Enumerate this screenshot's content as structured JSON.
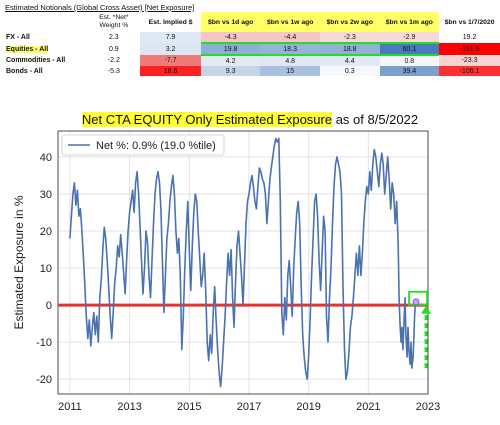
{
  "table": {
    "title": "Estimated Notionals (Global Cross Asset) [Net Exposure]",
    "headers": [
      "",
      "Est. *Net* Weight %",
      "Est. Implied $",
      "$bn vs 1d ago",
      "$bn vs 1w ago",
      "$bn vs 2w ago",
      "$bn vs 1m ago",
      "$bn vs 1/7/2020"
    ],
    "rows": [
      {
        "label": "FX - All",
        "cells": [
          "2.3",
          "7.9",
          "-4.3",
          "-4.4",
          "-2.3",
          "-2.9",
          "19.2"
        ],
        "colors": [
          "#ffffff",
          "#dfe9f5",
          "#f4c6c6",
          "#f4c6c6",
          "#f7d9d9",
          "#f7d9d9",
          "#ffffff"
        ]
      },
      {
        "label": "Equities - All",
        "cells": [
          "0.9",
          "3.2",
          "19.8",
          "18.3",
          "18.8",
          "60.1",
          "-151.5"
        ],
        "colors": [
          "#ffffff",
          "#dde6f1",
          "#8eaed5",
          "#95b3d8",
          "#93b1d7",
          "#4a79bd",
          "#ff0000"
        ],
        "highlight": true
      },
      {
        "label": "Commodities - All",
        "cells": [
          "-2.2",
          "-7.7",
          "4.2",
          "4.8",
          "4.4",
          "0.8",
          "-23.3"
        ],
        "colors": [
          "#ffffff",
          "#f07a7a",
          "#e2eaf4",
          "#dfe8f3",
          "#e1e9f4",
          "#f4f7fb",
          "#f7d4d4"
        ]
      },
      {
        "label": "Bonds - All",
        "cells": [
          "-5.3",
          "18.6",
          "9.3",
          "15",
          "0.3",
          "39.4",
          "-106.1"
        ],
        "colors": [
          "#ffffff",
          "#ff2020",
          "#c4d4e9",
          "#a9c1df",
          "#f6f8fb",
          "#7d9fcd",
          "#ff3030"
        ]
      }
    ]
  },
  "chart_title": {
    "highlighted": "Net CTA EQUITY Only Estimated Exposure",
    "rest": " as of 8/5/2022"
  },
  "colors": {
    "series": "#4a72b0",
    "zero_line": "#e8322e",
    "annotation": "#22dd22",
    "highlight": "#ffff33"
  },
  "chart_data": {
    "type": "line",
    "title": "Net CTA EQUITY Only Estimated Exposure as of 8/5/2022",
    "xlabel": "",
    "ylabel": "Estimated Exposure in %",
    "xlim": [
      2010.6,
      2023.0
    ],
    "ylim": [
      -24,
      47
    ],
    "xticks": [
      2011,
      2013,
      2015,
      2017,
      2019,
      2021,
      2023
    ],
    "yticks": [
      -20,
      -10,
      0,
      10,
      20,
      30,
      40
    ],
    "grid": true,
    "legend": "top-left",
    "series": [
      {
        "name": "Net %:  0.9% (19.0 %tile)",
        "points": [
          [
            2011.0,
            18
          ],
          [
            2011.05,
            24
          ],
          [
            2011.1,
            30
          ],
          [
            2011.15,
            33
          ],
          [
            2011.2,
            27
          ],
          [
            2011.25,
            31
          ],
          [
            2011.3,
            24
          ],
          [
            2011.35,
            26
          ],
          [
            2011.4,
            20
          ],
          [
            2011.45,
            13
          ],
          [
            2011.5,
            5
          ],
          [
            2011.55,
            -3
          ],
          [
            2011.6,
            -9
          ],
          [
            2011.65,
            -4
          ],
          [
            2011.7,
            -11
          ],
          [
            2011.75,
            -6
          ],
          [
            2011.8,
            -2
          ],
          [
            2011.85,
            -8
          ],
          [
            2011.9,
            -3
          ],
          [
            2011.95,
            -10
          ],
          [
            2012.0,
            2
          ],
          [
            2012.05,
            7
          ],
          [
            2012.1,
            15
          ],
          [
            2012.15,
            21
          ],
          [
            2012.2,
            18
          ],
          [
            2012.25,
            12
          ],
          [
            2012.3,
            5
          ],
          [
            2012.35,
            -3
          ],
          [
            2012.4,
            -9
          ],
          [
            2012.45,
            -2
          ],
          [
            2012.5,
            6
          ],
          [
            2012.55,
            10
          ],
          [
            2012.6,
            16
          ],
          [
            2012.65,
            13
          ],
          [
            2012.7,
            19
          ],
          [
            2012.75,
            14
          ],
          [
            2012.8,
            9
          ],
          [
            2012.85,
            3
          ],
          [
            2012.9,
            12
          ],
          [
            2012.95,
            20
          ],
          [
            2013.0,
            25
          ],
          [
            2013.05,
            28
          ],
          [
            2013.1,
            31
          ],
          [
            2013.15,
            25
          ],
          [
            2013.2,
            33
          ],
          [
            2013.25,
            36
          ],
          [
            2013.3,
            30
          ],
          [
            2013.35,
            21
          ],
          [
            2013.4,
            12
          ],
          [
            2013.45,
            3
          ],
          [
            2013.5,
            10
          ],
          [
            2013.55,
            20
          ],
          [
            2013.6,
            17
          ],
          [
            2013.65,
            8
          ],
          [
            2013.7,
            2
          ],
          [
            2013.75,
            12
          ],
          [
            2013.8,
            22
          ],
          [
            2013.85,
            30
          ],
          [
            2013.9,
            34
          ],
          [
            2013.95,
            36
          ],
          [
            2014.0,
            33
          ],
          [
            2014.05,
            26
          ],
          [
            2014.1,
            12
          ],
          [
            2014.15,
            -2
          ],
          [
            2014.2,
            8
          ],
          [
            2014.25,
            18
          ],
          [
            2014.3,
            22
          ],
          [
            2014.35,
            28
          ],
          [
            2014.4,
            32
          ],
          [
            2014.45,
            35
          ],
          [
            2014.5,
            30
          ],
          [
            2014.55,
            20
          ],
          [
            2014.6,
            14
          ],
          [
            2014.65,
            18
          ],
          [
            2014.7,
            8
          ],
          [
            2014.75,
            -12
          ],
          [
            2014.8,
            -3
          ],
          [
            2014.85,
            10
          ],
          [
            2014.9,
            20
          ],
          [
            2014.95,
            28
          ],
          [
            2015.0,
            15
          ],
          [
            2015.05,
            4
          ],
          [
            2015.1,
            16
          ],
          [
            2015.15,
            25
          ],
          [
            2015.2,
            30
          ],
          [
            2015.25,
            28
          ],
          [
            2015.3,
            20
          ],
          [
            2015.35,
            13
          ],
          [
            2015.4,
            5
          ],
          [
            2015.45,
            8
          ],
          [
            2015.5,
            14
          ],
          [
            2015.55,
            4
          ],
          [
            2015.6,
            -10
          ],
          [
            2015.65,
            -15
          ],
          [
            2015.7,
            -8
          ],
          [
            2015.75,
            -13
          ],
          [
            2015.8,
            -2
          ],
          [
            2015.85,
            5
          ],
          [
            2015.9,
            -4
          ],
          [
            2015.95,
            -12
          ],
          [
            2016.0,
            -18
          ],
          [
            2016.05,
            -22
          ],
          [
            2016.1,
            -17
          ],
          [
            2016.15,
            -10
          ],
          [
            2016.2,
            -3
          ],
          [
            2016.25,
            6
          ],
          [
            2016.3,
            14
          ],
          [
            2016.35,
            8
          ],
          [
            2016.4,
            15
          ],
          [
            2016.45,
            2
          ],
          [
            2016.5,
            -6
          ],
          [
            2016.55,
            6
          ],
          [
            2016.6,
            16
          ],
          [
            2016.65,
            20
          ],
          [
            2016.7,
            14
          ],
          [
            2016.75,
            8
          ],
          [
            2016.8,
            0
          ],
          [
            2016.85,
            11
          ],
          [
            2016.9,
            22
          ],
          [
            2016.95,
            28
          ],
          [
            2017.0,
            30
          ],
          [
            2017.05,
            33
          ],
          [
            2017.1,
            35
          ],
          [
            2017.15,
            32
          ],
          [
            2017.2,
            28
          ],
          [
            2017.25,
            26
          ],
          [
            2017.3,
            32
          ],
          [
            2017.35,
            37
          ],
          [
            2017.4,
            36
          ],
          [
            2017.45,
            34
          ],
          [
            2017.5,
            33
          ],
          [
            2017.55,
            30
          ],
          [
            2017.6,
            22
          ],
          [
            2017.65,
            28
          ],
          [
            2017.7,
            34
          ],
          [
            2017.75,
            37
          ],
          [
            2017.8,
            40
          ],
          [
            2017.85,
            43
          ],
          [
            2017.9,
            45
          ],
          [
            2017.95,
            44
          ],
          [
            2018.0,
            45
          ],
          [
            2018.05,
            28
          ],
          [
            2018.1,
            -2
          ],
          [
            2018.15,
            -8
          ],
          [
            2018.2,
            2
          ],
          [
            2018.25,
            -4
          ],
          [
            2018.3,
            8
          ],
          [
            2018.35,
            12
          ],
          [
            2018.4,
            5
          ],
          [
            2018.45,
            -3
          ],
          [
            2018.5,
            10
          ],
          [
            2018.55,
            18
          ],
          [
            2018.6,
            25
          ],
          [
            2018.65,
            28
          ],
          [
            2018.7,
            22
          ],
          [
            2018.75,
            5
          ],
          [
            2018.8,
            -8
          ],
          [
            2018.85,
            -14
          ],
          [
            2018.9,
            -18
          ],
          [
            2018.95,
            -20
          ],
          [
            2019.0,
            -14
          ],
          [
            2019.05,
            -4
          ],
          [
            2019.1,
            8
          ],
          [
            2019.15,
            18
          ],
          [
            2019.2,
            28
          ],
          [
            2019.25,
            30
          ],
          [
            2019.3,
            24
          ],
          [
            2019.35,
            12
          ],
          [
            2019.4,
            4
          ],
          [
            2019.45,
            14
          ],
          [
            2019.5,
            24
          ],
          [
            2019.55,
            20
          ],
          [
            2019.6,
            -3
          ],
          [
            2019.65,
            -10
          ],
          [
            2019.7,
            2
          ],
          [
            2019.75,
            10
          ],
          [
            2019.8,
            22
          ],
          [
            2019.85,
            32
          ],
          [
            2019.9,
            38
          ],
          [
            2019.95,
            40
          ],
          [
            2020.0,
            38
          ],
          [
            2020.05,
            36
          ],
          [
            2020.1,
            30
          ],
          [
            2020.15,
            5
          ],
          [
            2020.2,
            -12
          ],
          [
            2020.25,
            -20
          ],
          [
            2020.3,
            -18
          ],
          [
            2020.35,
            -13
          ],
          [
            2020.4,
            -6
          ],
          [
            2020.45,
            -3
          ],
          [
            2020.5,
            2
          ],
          [
            2020.55,
            8
          ],
          [
            2020.6,
            14
          ],
          [
            2020.65,
            8
          ],
          [
            2020.7,
            16
          ],
          [
            2020.75,
            8
          ],
          [
            2020.8,
            14
          ],
          [
            2020.85,
            22
          ],
          [
            2020.9,
            28
          ],
          [
            2020.95,
            32
          ],
          [
            2021.0,
            30
          ],
          [
            2021.05,
            36
          ],
          [
            2021.1,
            31
          ],
          [
            2021.15,
            38
          ],
          [
            2021.2,
            42
          ],
          [
            2021.25,
            40
          ],
          [
            2021.3,
            36
          ],
          [
            2021.35,
            32
          ],
          [
            2021.4,
            38
          ],
          [
            2021.45,
            41
          ],
          [
            2021.5,
            38
          ],
          [
            2021.55,
            30
          ],
          [
            2021.6,
            35
          ],
          [
            2021.65,
            40
          ],
          [
            2021.7,
            34
          ],
          [
            2021.75,
            26
          ],
          [
            2021.8,
            33
          ],
          [
            2021.85,
            30
          ],
          [
            2021.9,
            22
          ],
          [
            2021.95,
            28
          ],
          [
            2022.0,
            16
          ],
          [
            2022.03,
            2
          ],
          [
            2022.06,
            -5
          ],
          [
            2022.1,
            -10
          ],
          [
            2022.13,
            -6
          ],
          [
            2022.16,
            -12
          ],
          [
            2022.2,
            -4
          ],
          [
            2022.23,
            2
          ],
          [
            2022.26,
            -8
          ],
          [
            2022.3,
            -14
          ],
          [
            2022.33,
            -6
          ],
          [
            2022.36,
            -12
          ],
          [
            2022.4,
            -16
          ],
          [
            2022.43,
            -10
          ],
          [
            2022.46,
            -17
          ],
          [
            2022.5,
            -14
          ],
          [
            2022.53,
            -8
          ],
          [
            2022.55,
            -3
          ],
          [
            2022.58,
            1
          ],
          [
            2022.6,
            0.9
          ]
        ]
      }
    ],
    "annotations": [
      "green box around last value",
      "green dashed arrow pointing up to last value"
    ]
  }
}
